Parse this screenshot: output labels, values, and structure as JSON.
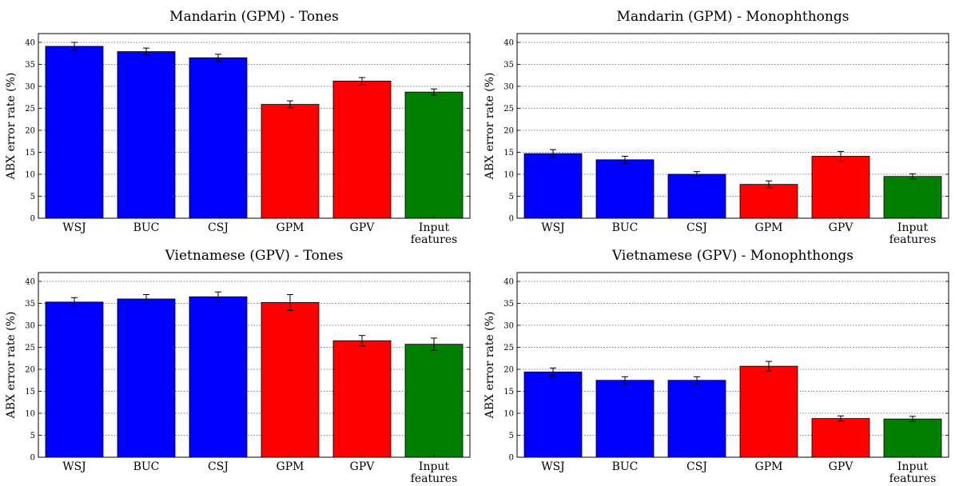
{
  "colors": {
    "pretrained": "#0000ff",
    "target": "#ff0000",
    "baseline": "#008000",
    "error_bar": "#000000",
    "grid": "#000000"
  },
  "chart_data": [
    {
      "type": "bar",
      "title": "Mandarin (GPM) - Tones",
      "xlabel": "",
      "ylabel": "ABX error rate (%)",
      "ylim": [
        0,
        42
      ],
      "yticks": [
        0,
        5,
        10,
        15,
        20,
        25,
        30,
        35,
        40
      ],
      "grid": true,
      "categories": [
        [
          "WSJ"
        ],
        [
          "BUC"
        ],
        [
          "CSJ"
        ],
        [
          "GPM"
        ],
        [
          "GPV"
        ],
        [
          "Input",
          "features"
        ]
      ],
      "values": [
        39.1,
        37.9,
        36.5,
        25.9,
        31.2,
        28.7
      ],
      "errors": [
        0.9,
        0.8,
        0.8,
        0.8,
        0.8,
        0.7
      ],
      "bar_colors": [
        "#0000ff",
        "#0000ff",
        "#0000ff",
        "#ff0000",
        "#ff0000",
        "#008000"
      ]
    },
    {
      "type": "bar",
      "title": "Mandarin (GPM) - Monophthongs",
      "xlabel": "",
      "ylabel": "ABX error rate (%)",
      "ylim": [
        0,
        42
      ],
      "yticks": [
        0,
        5,
        10,
        15,
        20,
        25,
        30,
        35,
        40
      ],
      "grid": true,
      "categories": [
        [
          "WSJ"
        ],
        [
          "BUC"
        ],
        [
          "CSJ"
        ],
        [
          "GPM"
        ],
        [
          "GPV"
        ],
        [
          "Input",
          "features"
        ]
      ],
      "values": [
        14.7,
        13.3,
        10.0,
        7.7,
        14.1,
        9.5
      ],
      "errors": [
        0.9,
        0.8,
        0.6,
        0.8,
        1.1,
        0.6
      ],
      "bar_colors": [
        "#0000ff",
        "#0000ff",
        "#0000ff",
        "#ff0000",
        "#ff0000",
        "#008000"
      ]
    },
    {
      "type": "bar",
      "title": "Vietnamese (GPV) - Tones",
      "xlabel": "",
      "ylabel": "ABX error rate (%)",
      "ylim": [
        0,
        42
      ],
      "yticks": [
        0,
        5,
        10,
        15,
        20,
        25,
        30,
        35,
        40
      ],
      "grid": true,
      "categories": [
        [
          "WSJ"
        ],
        [
          "BUC"
        ],
        [
          "CSJ"
        ],
        [
          "GPM"
        ],
        [
          "GPV"
        ],
        [
          "Input",
          "features"
        ]
      ],
      "values": [
        35.3,
        36.0,
        36.5,
        35.2,
        26.5,
        25.7
      ],
      "errors": [
        1.0,
        1.0,
        1.1,
        1.8,
        1.2,
        1.4
      ],
      "bar_colors": [
        "#0000ff",
        "#0000ff",
        "#0000ff",
        "#ff0000",
        "#ff0000",
        "#008000"
      ]
    },
    {
      "type": "bar",
      "title": "Vietnamese (GPV) - Monophthongs",
      "xlabel": "",
      "ylabel": "ABX error rate (%)",
      "ylim": [
        0,
        42
      ],
      "yticks": [
        0,
        5,
        10,
        15,
        20,
        25,
        30,
        35,
        40
      ],
      "grid": true,
      "categories": [
        [
          "WSJ"
        ],
        [
          "BUC"
        ],
        [
          "CSJ"
        ],
        [
          "GPM"
        ],
        [
          "GPV"
        ],
        [
          "Input",
          "features"
        ]
      ],
      "values": [
        19.4,
        17.5,
        17.5,
        20.7,
        8.8,
        8.7
      ],
      "errors": [
        0.9,
        0.8,
        0.8,
        1.1,
        0.6,
        0.6
      ],
      "bar_colors": [
        "#0000ff",
        "#0000ff",
        "#0000ff",
        "#ff0000",
        "#ff0000",
        "#008000"
      ]
    }
  ]
}
